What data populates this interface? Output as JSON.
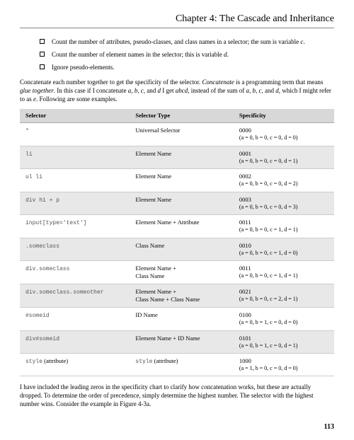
{
  "header": {
    "title": "Chapter 4: The Cascade and Inheritance"
  },
  "bullets": [
    {
      "pre": "Count the number of attributes, pseudo-classes, and class names in a selector; the sum is variable ",
      "ital": "c",
      "post": "."
    },
    {
      "pre": "Count the number of element names in the selector; this is variable ",
      "ital": "d",
      "post": "."
    },
    {
      "pre": "Ignore pseudo-elements.",
      "ital": "",
      "post": ""
    }
  ],
  "para1": {
    "t1": "Concatenate each number together to get the specificity of the selector. ",
    "i1": "Concatenate",
    "t2": " is a programming term that means ",
    "i2": "glue together",
    "t3": ". In this case if I concatenate ",
    "i3": "a",
    "t4": ", ",
    "i4": "b",
    "t5": ", ",
    "i5": "c",
    "t6": ", and ",
    "i6": "d",
    "t7": " I get ",
    "i7": "abcd",
    "t8": ", instead of the sum of ",
    "i8": "a",
    "t9": ", ",
    "i9": "b",
    "t10": ", ",
    "i10": "c",
    "t11": ", and ",
    "i11": "d",
    "t12": ", which I might refer to as ",
    "i12": "e",
    "t13": ". Following are some examples."
  },
  "table": {
    "headers": [
      "Selector",
      "Selector Type",
      "Specificity"
    ],
    "rows": [
      {
        "sel": "*",
        "selMono": true,
        "type": "Universal Selector",
        "typeMono": false,
        "spec": "0000",
        "sub": "(a = 0, b = 0, c = 0, d = 0)"
      },
      {
        "sel": "li",
        "selMono": true,
        "type": "Element Name",
        "typeMono": false,
        "spec": "0001",
        "sub": "(a = 0, b = 0, c = 0, d = 1)"
      },
      {
        "sel": "ul li",
        "selMono": true,
        "type": "Element Name",
        "typeMono": false,
        "spec": "0002",
        "sub": "(a = 0, b = 0, c = 0, d = 2)"
      },
      {
        "sel": "div h1 + p",
        "selMono": true,
        "type": "Element Name",
        "typeMono": false,
        "spec": "0003",
        "sub": "(a = 0, b = 0, c = 0, d = 3)"
      },
      {
        "sel": "input[type='text']",
        "selMono": true,
        "type": "Element Name + Attribute",
        "typeMono": false,
        "spec": "0011",
        "sub": "(a = 0, b = 0, c = 1, d = 1)"
      },
      {
        "sel": ".someclass",
        "selMono": true,
        "type": "Class Name",
        "typeMono": false,
        "spec": "0010",
        "sub": "(a = 0, b = 0, c = 1, d = 0)"
      },
      {
        "sel": "div.someclass",
        "selMono": true,
        "type": "Element Name +\nClass Name",
        "typeMono": false,
        "spec": "0011",
        "sub": "(a = 0, b = 0, c = 1, d = 1)"
      },
      {
        "sel": "div.someclass.someother",
        "selMono": true,
        "type": "Element Name +\nClass Name + Class Name",
        "typeMono": false,
        "spec": "0021",
        "sub": "(a = 0, b = 0, c = 2, d = 1)"
      },
      {
        "sel": "#someid",
        "selMono": true,
        "type": "ID Name",
        "typeMono": false,
        "spec": "0100",
        "sub": "(a = 0, b = 1, c = 0, d = 0)"
      },
      {
        "sel": "div#someid",
        "selMono": true,
        "type": "Element Name + ID Name",
        "typeMono": false,
        "spec": "0101",
        "sub": "(a = 0, b = 1, c = 0, d = 1)"
      },
      {
        "sel": "style",
        "selMono": true,
        "selSuffix": " (attribute)",
        "type": "style",
        "typeMono": true,
        "typeSuffix": " (attribute)",
        "spec": "1000",
        "sub": "(a = 1, b = 0, c = 0, d = 0)"
      }
    ]
  },
  "para2": "I have included the leading zeros in the specificity chart to clarify how concatenation works, but these are actually dropped. To determine the order of precedence, simply determine the highest number. The selector with the highest number wins. Consider the example in Figure 4-3a.",
  "pageNumber": "113"
}
